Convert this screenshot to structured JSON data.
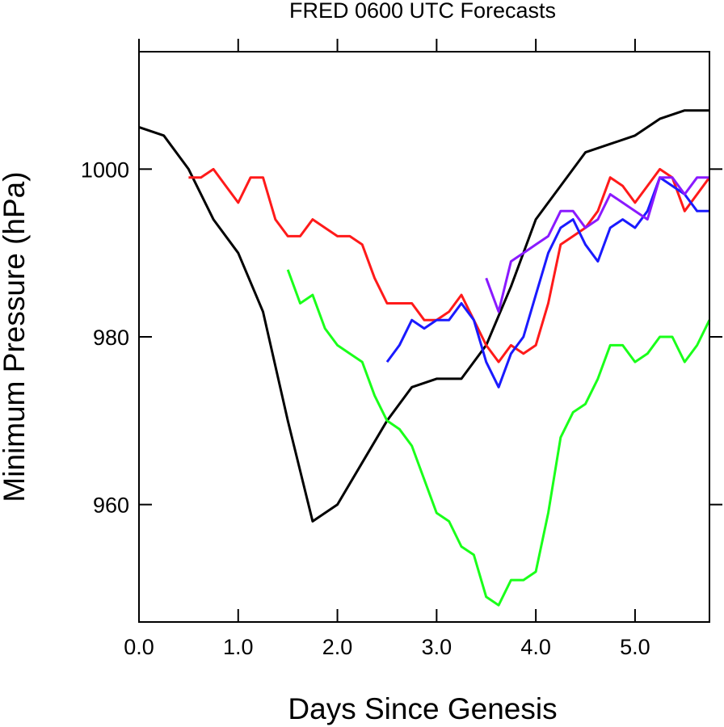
{
  "chart_data": {
    "type": "line",
    "title": "FRED 0600 UTC Forecasts",
    "xlabel": "Days Since Genesis",
    "ylabel": "Minimum Pressure (hPa)",
    "xlim": [
      0.0,
      5.75
    ],
    "ylim": [
      946,
      1014
    ],
    "x_ticks": [
      0.0,
      1.0,
      2.0,
      3.0,
      4.0,
      5.0
    ],
    "x_tick_labels": [
      "0.0",
      "1.0",
      "2.0",
      "3.0",
      "4.0",
      "5.0"
    ],
    "y_ticks": [
      960,
      980,
      1000
    ],
    "y_tick_labels": [
      "960",
      "980",
      "1000"
    ],
    "grid": false,
    "series": [
      {
        "color": "#000000",
        "x": [
          0.0,
          0.25,
          0.5,
          0.75,
          1.0,
          1.25,
          1.5,
          1.75,
          2.0,
          2.25,
          2.5,
          2.75,
          3.0,
          3.25,
          3.5,
          3.75,
          4.0,
          4.25,
          4.5,
          4.75,
          5.0,
          5.25,
          5.5,
          5.75
        ],
        "y": [
          1005,
          1004,
          1000,
          994,
          990,
          983,
          970,
          958,
          960,
          965,
          970,
          974,
          975,
          975,
          979,
          986,
          994,
          998,
          1002,
          1003,
          1004,
          1006,
          1007,
          1007
        ]
      },
      {
        "color": "#ff1a1a",
        "x": [
          0.5,
          0.625,
          0.75,
          0.875,
          1.0,
          1.125,
          1.25,
          1.375,
          1.5,
          1.625,
          1.75,
          1.875,
          2.0,
          2.125,
          2.25,
          2.375,
          2.5,
          2.625,
          2.75,
          2.875,
          3.0,
          3.125,
          3.25,
          3.375,
          3.5,
          3.625,
          3.75,
          3.875,
          4.0,
          4.125,
          4.25,
          4.375,
          4.5,
          4.625,
          4.75,
          4.875,
          5.0,
          5.125,
          5.25,
          5.375,
          5.5,
          5.625,
          5.75
        ],
        "y": [
          999,
          999,
          1000,
          998,
          996,
          999,
          999,
          994,
          992,
          992,
          994,
          993,
          992,
          992,
          991,
          987,
          984,
          984,
          984,
          982,
          982,
          983,
          985,
          982,
          979,
          977,
          979,
          978,
          979,
          984,
          991,
          992,
          993,
          995,
          999,
          998,
          996,
          998,
          1000,
          999,
          995,
          997,
          999
        ]
      },
      {
        "color": "#1a1aff",
        "x": [
          2.5,
          2.625,
          2.75,
          2.875,
          3.0,
          3.125,
          3.25,
          3.375,
          3.5,
          3.625,
          3.75,
          3.875,
          4.0,
          4.125,
          4.25,
          4.375,
          4.5,
          4.625,
          4.75,
          4.875,
          5.0,
          5.125,
          5.25,
          5.375,
          5.5,
          5.625,
          5.75
        ],
        "y": [
          977,
          979,
          982,
          981,
          982,
          982,
          984,
          982,
          977,
          974,
          978,
          980,
          985,
          990,
          993,
          994,
          991,
          989,
          993,
          994,
          993,
          995,
          999,
          998,
          997,
          995,
          995
        ]
      },
      {
        "color": "#8a1aff",
        "x": [
          3.5,
          3.625,
          3.75,
          3.875,
          4.0,
          4.125,
          4.25,
          4.375,
          4.5,
          4.625,
          4.75,
          4.875,
          5.0,
          5.125,
          5.25,
          5.375,
          5.5,
          5.625,
          5.75
        ],
        "y": [
          987,
          983,
          989,
          990,
          991,
          992,
          995,
          995,
          993,
          994,
          997,
          996,
          995,
          994,
          999,
          999,
          997,
          999,
          999
        ]
      },
      {
        "color": "#1aff1a",
        "x": [
          1.5,
          1.625,
          1.75,
          1.875,
          2.0,
          2.125,
          2.25,
          2.375,
          2.5,
          2.625,
          2.75,
          2.875,
          3.0,
          3.125,
          3.25,
          3.375,
          3.5,
          3.625,
          3.75,
          3.875,
          4.0,
          4.125,
          4.25,
          4.375,
          4.5,
          4.625,
          4.75,
          4.875,
          5.0,
          5.125,
          5.25,
          5.375,
          5.5,
          5.625,
          5.75
        ],
        "y": [
          988,
          984,
          985,
          981,
          979,
          978,
          977,
          973,
          970,
          969,
          967,
          963,
          959,
          958,
          955,
          954,
          949,
          948,
          951,
          951,
          952,
          959,
          968,
          971,
          972,
          975,
          979,
          979,
          977,
          978,
          980,
          980,
          977,
          979,
          982
        ]
      }
    ]
  }
}
